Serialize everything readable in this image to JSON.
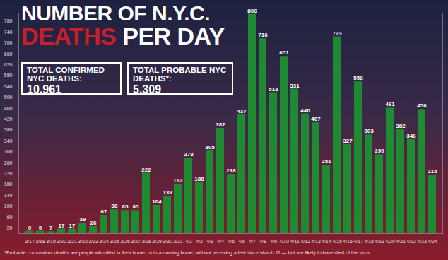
{
  "chart_data": {
    "type": "bar",
    "title": "NUMBER OF N.Y.C. DEATHS PER DAY",
    "categories": [
      "3/17",
      "3/18",
      "3/19",
      "3/20",
      "3/21",
      "3/22",
      "3/23",
      "3/24",
      "3/25",
      "3/26",
      "3/27",
      "3/28",
      "3/29",
      "3/30",
      "3/31",
      "4/1",
      "4/2",
      "4/3",
      "4/4",
      "4/5",
      "4/6",
      "4/7",
      "4/8",
      "4/9",
      "4/10",
      "4/11",
      "4/12",
      "4/13",
      "4/14",
      "4/15",
      "4/16",
      "4/17",
      "4/18",
      "4/19",
      "4/20",
      "4/21",
      "4/22",
      "4/23",
      "4/24"
    ],
    "values": [
      9,
      9,
      7,
      17,
      17,
      39,
      26,
      67,
      88,
      85,
      85,
      222,
      104,
      138,
      182,
      278,
      188,
      305,
      387,
      218,
      437,
      806,
      716,
      518,
      651,
      531,
      440,
      407,
      251,
      723,
      327,
      558,
      363,
      290,
      461,
      382,
      346,
      456,
      215
    ],
    "color": "#1e8a32",
    "ylim": [
      0,
      810
    ],
    "yticks": [
      20,
      60,
      100,
      140,
      180,
      220,
      260,
      300,
      340,
      380,
      420,
      460,
      500,
      540,
      580,
      620,
      660,
      700,
      740,
      780
    ],
    "grid": false,
    "data_labels": true,
    "annotations": [
      {
        "text": "TOTAL CONFIRMED NYC DEATHS:",
        "value": "10,961"
      },
      {
        "text": "TOTAL PROBABLE NYC DEATHS*:",
        "value": "5,309"
      }
    ],
    "footnote": "*Probable coronavirus deaths are people who died in their home, or in a nursing home, without receiving a test since March 11 — but are likely to have died of the virus."
  }
}
